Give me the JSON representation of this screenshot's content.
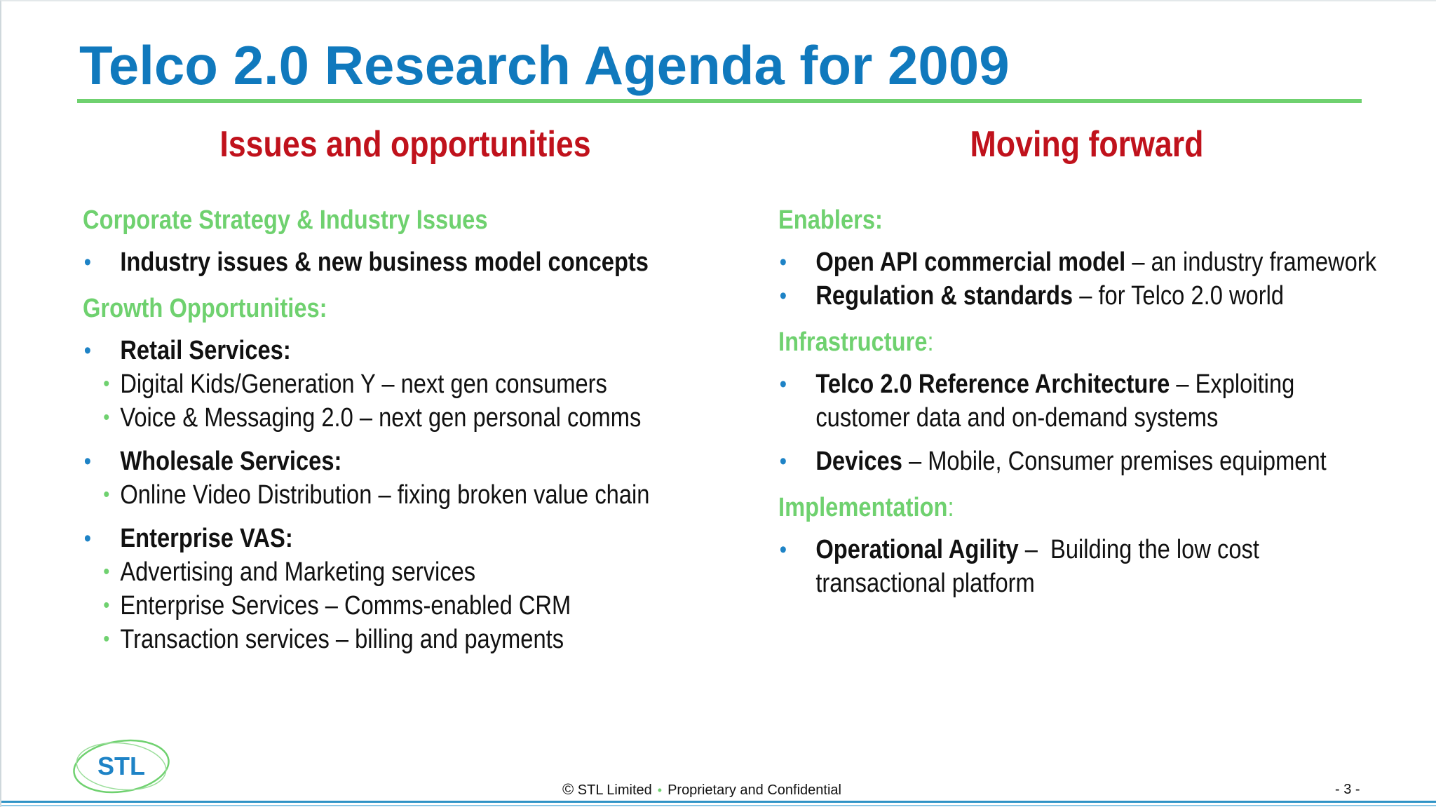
{
  "title": "Telco 2.0 Research Agenda for 2009",
  "left": {
    "heading": "Issues and opportunities",
    "sections": [
      {
        "label": "Corporate Strategy & Industry Issues",
        "items": [
          {
            "bold": "Industry issues & new business model concepts"
          }
        ]
      },
      {
        "label": "Growth Opportunities:",
        "items": [
          {
            "bold": "Retail Services:",
            "subs": [
              "Digital Kids/Generation Y – next gen consumers",
              "Voice & Messaging 2.0 – next gen personal comms"
            ]
          },
          {
            "bold": "Wholesale Services:",
            "subs": [
              "Online Video Distribution – fixing broken value chain"
            ]
          },
          {
            "bold": "Enterprise VAS:",
            "subs": [
              "Advertising and Marketing services",
              "Enterprise Services – Comms-enabled CRM",
              "Transaction services – billing and payments"
            ]
          }
        ]
      }
    ]
  },
  "right": {
    "heading": "Moving forward",
    "enablers": {
      "label": "Enablers:",
      "items": [
        {
          "bold": "Open API commercial model",
          "rest": " – an industry framework"
        },
        {
          "bold": "Regulation & standards",
          "rest": " – for Telco 2.0 world"
        }
      ]
    },
    "infrastructure": {
      "label": "Infrastructure",
      "colon": ":",
      "items": [
        {
          "bold": "Telco 2.0 Reference Architecture",
          "rest": " – Exploiting",
          "line2": "customer data and on-demand systems"
        },
        {
          "bold": "Devices",
          "rest": " – Mobile, Consumer premises equipment"
        }
      ]
    },
    "implementation": {
      "label": "Implementation",
      "colon": ":",
      "items": [
        {
          "bold": "Operational Agility",
          "rest": " –  Building the low cost",
          "line2": "transactional platform"
        }
      ]
    }
  },
  "footer": {
    "copyright_symbol": "©",
    "company": "STL Limited",
    "confidential": "Proprietary and Confidential",
    "page": "- 3 -"
  },
  "logo": {
    "text": "STL",
    "colors": {
      "ring": "#6fd16f",
      "text": "#1e83c6"
    }
  },
  "colors": {
    "title": "#1079bd",
    "heading": "#c0121c",
    "section": "#6fd16f",
    "bullet": "#1e83c6",
    "rule": "#6fd16f"
  }
}
